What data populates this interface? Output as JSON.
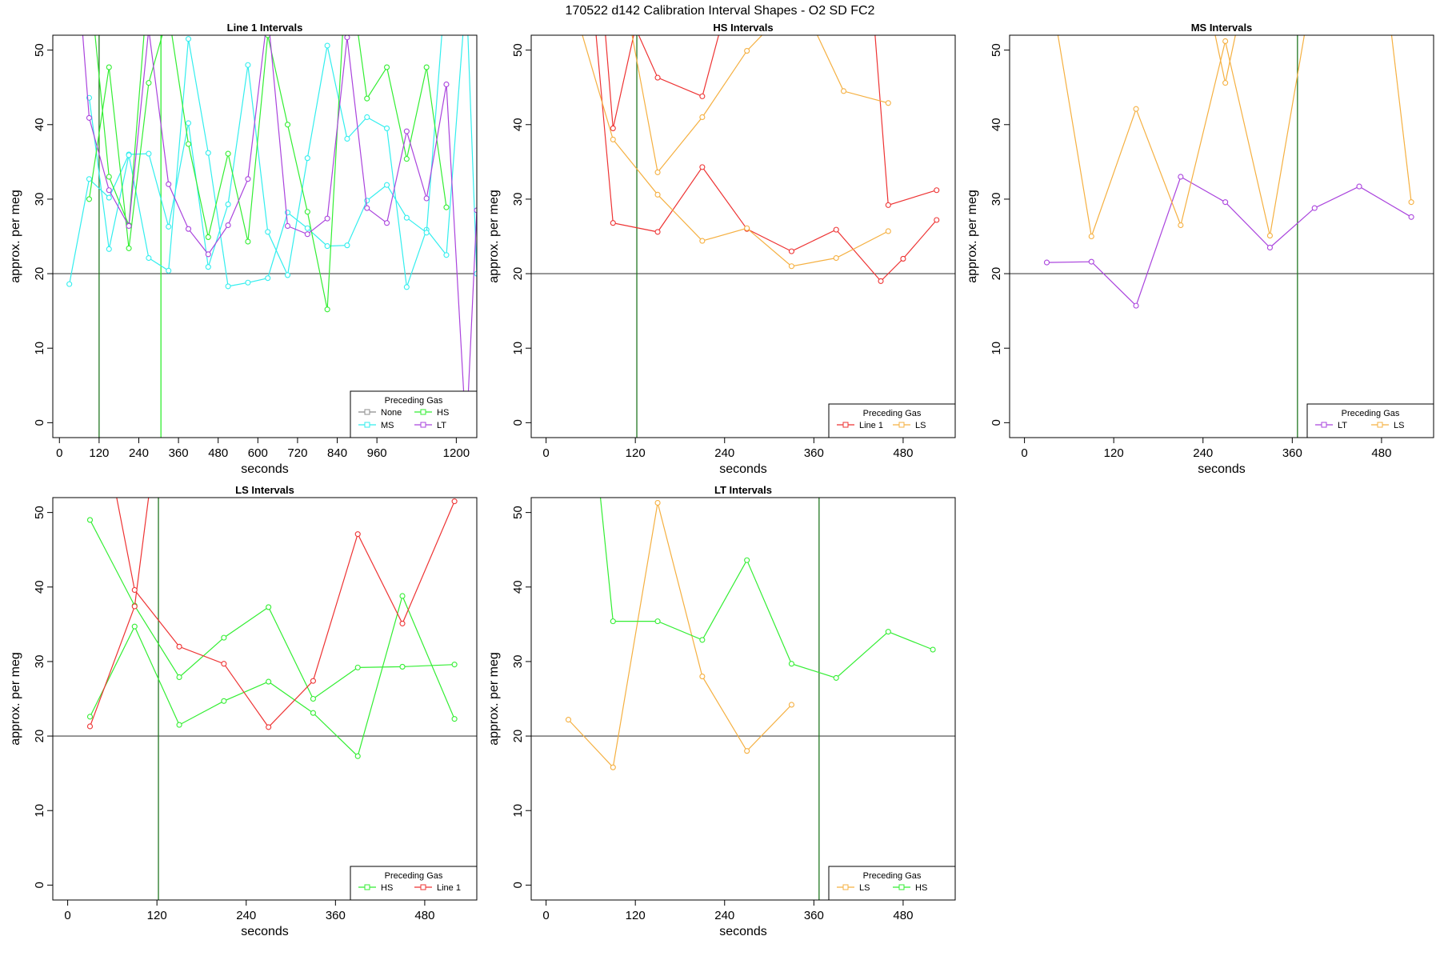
{
  "figure_title": "170522   d142   Calibration Interval Shapes - O2 SD FC2",
  "legend_title": "Preceding Gas",
  "colors": {
    "None": "#8c8c8c",
    "HS": "#33ee33",
    "MS": "#33eeee",
    "LT": "#aa44dd",
    "Line 1": "#ee3333",
    "LS": "#f5b041",
    "axis": "#000000",
    "hline": "#444444",
    "vline": "#227722"
  },
  "chart_data": [
    {
      "type": "line",
      "title": "Line 1 Intervals",
      "xlabel": "seconds",
      "ylabel": "approx. per meg",
      "xlim": [
        -20,
        1262
      ],
      "ylim": [
        -2,
        52
      ],
      "xticks": [
        0,
        120,
        240,
        360,
        480,
        600,
        720,
        840,
        960,
        1200
      ],
      "yticks": [
        0,
        10,
        20,
        30,
        40,
        50
      ],
      "hline": 20,
      "vlines": [
        {
          "x": 120,
          "color": "vline"
        },
        {
          "x": 307,
          "color": "HS"
        }
      ],
      "legend": {
        "position": "bottom-right",
        "entries": [
          "None",
          "HS",
          "MS",
          "LT"
        ]
      },
      "series": [
        {
          "name": "MS",
          "x": [
            30,
            90,
            150,
            210,
            270,
            330,
            390,
            450,
            510,
            570,
            630,
            690,
            750,
            810,
            870,
            930,
            990,
            1050,
            1110,
            1170,
            1230,
            1262
          ],
          "y": [
            18.6,
            32.7,
            30.2,
            36.0,
            36.1,
            26.3,
            40.2,
            20.9,
            29.3,
            48.0,
            25.6,
            19.8,
            35.5,
            50.6,
            38.1,
            41.0,
            39.5,
            18.2,
            25.9,
            22.5,
            58.0,
            20.0
          ]
        },
        {
          "name": "MS",
          "x": [
            90,
            150,
            210,
            270,
            330,
            390,
            450,
            510,
            570,
            630,
            690,
            750,
            810,
            870,
            930,
            990,
            1050,
            1110,
            1170
          ],
          "y": [
            43.6,
            23.3,
            35.9,
            22.1,
            20.4,
            51.5,
            36.2,
            18.3,
            18.8,
            19.4,
            28.2,
            26.1,
            23.7,
            23.8,
            29.8,
            31.9,
            27.5,
            25.5,
            60.0
          ]
        },
        {
          "name": "HS",
          "x": [
            90,
            150,
            210,
            270,
            330,
            390,
            450,
            510,
            570,
            630,
            690,
            750,
            810,
            870,
            930,
            990,
            1050,
            1110,
            1170
          ],
          "y": [
            30.0,
            47.7,
            23.4,
            45.6,
            55.0,
            37.4,
            24.9,
            36.1,
            24.3,
            52.0,
            40.0,
            28.3,
            15.2,
            63.0,
            43.5,
            47.7,
            35.4,
            47.7,
            28.9
          ]
        },
        {
          "name": "HS",
          "x": [
            90,
            150,
            210,
            270
          ],
          "y": [
            60.0,
            33.0,
            26.5,
            60.0
          ]
        },
        {
          "name": "LT",
          "x": [
            60,
            90,
            150,
            210,
            270,
            330,
            390,
            450,
            510,
            570,
            630,
            690,
            750,
            810,
            870,
            930,
            990,
            1050,
            1110,
            1170,
            1230,
            1262
          ],
          "y": [
            58.0,
            40.9,
            31.2,
            26.4,
            52.8,
            32.0,
            26.0,
            22.6,
            26.5,
            32.7,
            55.0,
            26.4,
            25.3,
            27.4,
            51.7,
            28.8,
            26.8,
            39.1,
            30.1,
            45.4,
            -2.0,
            28.5
          ]
        }
      ]
    },
    {
      "type": "line",
      "title": "HS Intervals",
      "xlabel": "seconds",
      "ylabel": "approx. per meg",
      "xlim": [
        -20,
        550
      ],
      "ylim": [
        -2,
        52
      ],
      "xticks": [
        0,
        120,
        240,
        360,
        480
      ],
      "yticks": [
        0,
        10,
        20,
        30,
        40,
        50
      ],
      "hline": 20,
      "vlines": [
        {
          "x": 122,
          "color": "vline"
        }
      ],
      "legend": {
        "position": "bottom-right",
        "entries": [
          "Line 1",
          "LS"
        ]
      },
      "series": [
        {
          "name": "Line 1",
          "x": [
            60,
            90,
            150,
            210,
            270,
            330,
            390,
            450,
            480,
            525
          ],
          "y": [
            60.0,
            26.8,
            25.6,
            34.3,
            26.0,
            23.0,
            25.9,
            19.0,
            22.0,
            27.2
          ]
        },
        {
          "name": "Line 1",
          "x": [
            75,
            90,
            120,
            150,
            210,
            240
          ],
          "y": [
            58.0,
            39.5,
            53.0,
            46.3,
            43.8,
            55.0
          ]
        },
        {
          "name": "Line 1",
          "x": [
            440,
            460,
            525
          ],
          "y": [
            55.0,
            29.2,
            31.2
          ]
        },
        {
          "name": "LS",
          "x": [
            40,
            90,
            150,
            210,
            270,
            330,
            390,
            460
          ],
          "y": [
            55.0,
            38.0,
            30.6,
            24.4,
            26.1,
            21.0,
            22.1,
            25.7
          ]
        },
        {
          "name": "LS",
          "x": [
            110,
            150,
            210,
            270,
            300,
            360,
            400,
            460
          ],
          "y": [
            55.0,
            33.6,
            41.0,
            49.9,
            53.0,
            53.0,
            44.5,
            42.9
          ]
        }
      ]
    },
    {
      "type": "line",
      "title": "MS Intervals",
      "xlabel": "seconds",
      "ylabel": "approx. per meg",
      "xlim": [
        -20,
        550
      ],
      "ylim": [
        -2,
        52
      ],
      "xticks": [
        0,
        120,
        240,
        360,
        480
      ],
      "yticks": [
        0,
        10,
        20,
        30,
        40,
        50
      ],
      "hline": 20,
      "vlines": [
        {
          "x": 367,
          "color": "vline"
        }
      ],
      "legend": {
        "position": "bottom-right",
        "entries": [
          "LT",
          "LS"
        ]
      },
      "series": [
        {
          "name": "LT",
          "x": [
            30,
            90,
            150,
            210,
            270,
            330,
            390,
            450,
            520
          ],
          "y": [
            21.5,
            21.6,
            15.7,
            33.0,
            29.6,
            23.5,
            28.8,
            31.7,
            27.6
          ]
        },
        {
          "name": "LS",
          "x": [
            40,
            90,
            150,
            210,
            270,
            330,
            390
          ],
          "y": [
            55.0,
            25.0,
            42.1,
            26.5,
            51.2,
            25.1,
            60.0
          ]
        },
        {
          "name": "LS",
          "x": [
            250,
            270,
            290
          ],
          "y": [
            55.0,
            45.6,
            55.0
          ]
        },
        {
          "name": "LS",
          "x": [
            490,
            520
          ],
          "y": [
            55.0,
            29.6
          ]
        }
      ]
    },
    {
      "type": "line",
      "title": "LS Intervals",
      "xlabel": "seconds",
      "ylabel": "approx. per meg",
      "xlim": [
        -20,
        550
      ],
      "ylim": [
        -2,
        52
      ],
      "xticks": [
        0,
        120,
        240,
        360,
        480
      ],
      "yticks": [
        0,
        10,
        20,
        30,
        40,
        50
      ],
      "hline": 20,
      "vlines": [
        {
          "x": 122,
          "color": "vline"
        }
      ],
      "legend": {
        "position": "bottom-right",
        "entries": [
          "HS",
          "Line 1"
        ]
      },
      "series": [
        {
          "name": "HS",
          "x": [
            30,
            90,
            150,
            210,
            270,
            330,
            390,
            450,
            520
          ],
          "y": [
            49.0,
            37.5,
            27.9,
            33.2,
            37.3,
            25.0,
            29.2,
            29.3,
            29.6
          ]
        },
        {
          "name": "HS",
          "x": [
            30,
            90,
            150,
            210,
            270,
            330,
            390,
            450,
            520
          ],
          "y": [
            22.6,
            34.7,
            21.5,
            24.7,
            27.3,
            23.1,
            17.3,
            38.8,
            22.3
          ]
        },
        {
          "name": "Line 1",
          "x": [
            30,
            90,
            110
          ],
          "y": [
            21.3,
            37.4,
            53.0
          ]
        },
        {
          "name": "Line 1",
          "x": [
            60,
            90,
            150,
            210,
            270,
            330,
            390,
            450,
            520
          ],
          "y": [
            55.0,
            39.6,
            32.0,
            29.7,
            21.2,
            27.4,
            47.1,
            35.1,
            51.5
          ]
        }
      ]
    },
    {
      "type": "line",
      "title": "LT Intervals",
      "xlabel": "seconds",
      "ylabel": "approx. per meg",
      "xlim": [
        -20,
        550
      ],
      "ylim": [
        -2,
        52
      ],
      "xticks": [
        0,
        120,
        240,
        360,
        480
      ],
      "yticks": [
        0,
        10,
        20,
        30,
        40,
        50
      ],
      "hline": 20,
      "vlines": [
        {
          "x": 367,
          "color": "vline"
        }
      ],
      "legend": {
        "position": "bottom-right",
        "entries": [
          "LS",
          "HS"
        ]
      },
      "series": [
        {
          "name": "LS",
          "x": [
            30,
            90,
            150,
            210,
            270,
            330
          ],
          "y": [
            22.2,
            15.8,
            51.3,
            28.0,
            18.0,
            24.2
          ]
        },
        {
          "name": "HS",
          "x": [
            70,
            90,
            150,
            210,
            270,
            330,
            390,
            460,
            520
          ],
          "y": [
            55.0,
            35.4,
            35.4,
            32.9,
            43.6,
            29.7,
            27.8,
            34.0,
            31.6
          ]
        }
      ]
    }
  ]
}
